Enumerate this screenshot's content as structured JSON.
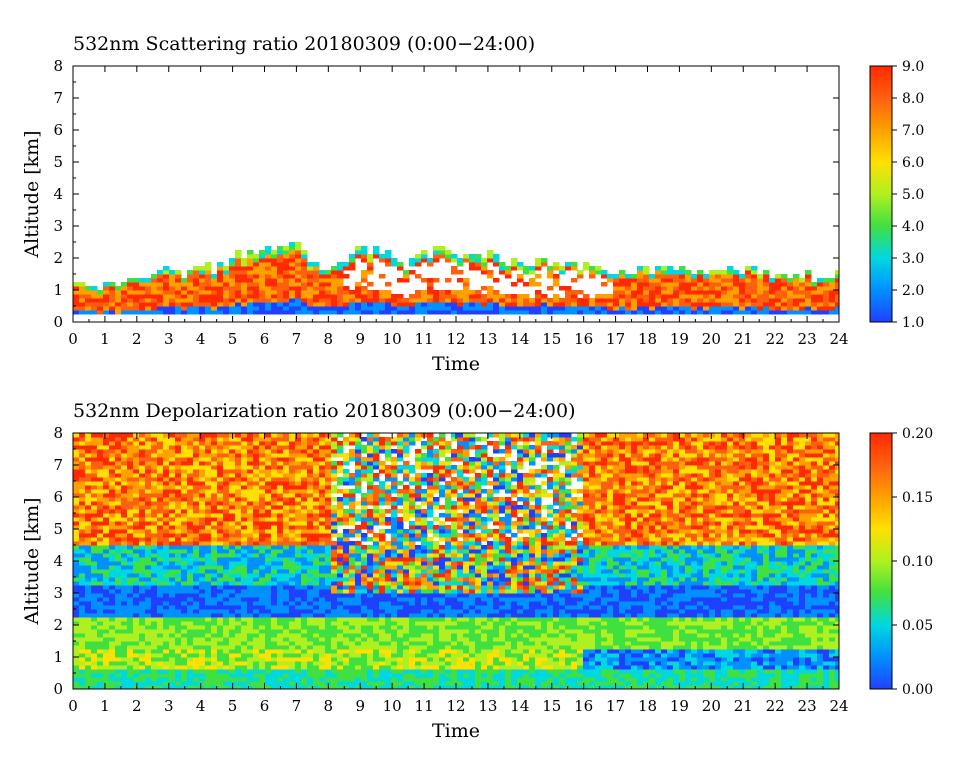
{
  "chart_data": [
    {
      "type": "heatmap",
      "title": "532nm Scattering ratio  20180309 (0:00−24:00)",
      "xlabel": "Time",
      "ylabel": "Altitude [km]",
      "xlim": [
        0,
        24
      ],
      "ylim": [
        0,
        8
      ],
      "x_ticks": [
        0,
        1,
        2,
        3,
        4,
        5,
        6,
        7,
        8,
        9,
        10,
        11,
        12,
        13,
        14,
        15,
        16,
        17,
        18,
        19,
        20,
        21,
        22,
        23,
        24
      ],
      "y_ticks": [
        0,
        1,
        2,
        3,
        4,
        5,
        6,
        7,
        8
      ],
      "colorbar": {
        "min": 1.0,
        "max": 9.0,
        "ticks": [
          "1.0",
          "2.0",
          "3.0",
          "4.0",
          "5.0",
          "6.0",
          "7.0",
          "8.0",
          "9.0"
        ]
      },
      "colors": [
        "#2040ff",
        "#0090ff",
        "#00d8e0",
        "#40e040",
        "#b0f020",
        "#ffe000",
        "#ffa000",
        "#ff6010",
        "#ff2a00"
      ],
      "cloud_top_km": [
        [
          0,
          1.2
        ],
        [
          0.5,
          1.0
        ],
        [
          1,
          1.1
        ],
        [
          1.5,
          1.3
        ],
        [
          2,
          1.5
        ],
        [
          2.5,
          1.4
        ],
        [
          3,
          1.7
        ],
        [
          3.5,
          1.5
        ],
        [
          4,
          1.8
        ],
        [
          4.5,
          1.7
        ],
        [
          5,
          2.0
        ],
        [
          5.5,
          2.1
        ],
        [
          6,
          2.2
        ],
        [
          6.5,
          2.4
        ],
        [
          7,
          2.6
        ],
        [
          7.5,
          1.9
        ],
        [
          8,
          1.6
        ],
        [
          8.5,
          1.8
        ],
        [
          9,
          2.3
        ],
        [
          9.5,
          2.2
        ],
        [
          10,
          2.1
        ],
        [
          10.5,
          1.7
        ],
        [
          11,
          2.2
        ],
        [
          11.5,
          2.2
        ],
        [
          12,
          2.1
        ],
        [
          12.5,
          2.0
        ],
        [
          13,
          2.1
        ],
        [
          13.5,
          2.0
        ],
        [
          14,
          1.9
        ],
        [
          14.5,
          1.9
        ],
        [
          15,
          1.8
        ],
        [
          15.5,
          1.8
        ],
        [
          16,
          1.7
        ],
        [
          16.5,
          1.7
        ],
        [
          17,
          1.6
        ],
        [
          17.5,
          1.6
        ],
        [
          18,
          1.6
        ],
        [
          18.5,
          1.6
        ],
        [
          19,
          1.6
        ],
        [
          19.5,
          1.6
        ],
        [
          20,
          1.6
        ],
        [
          20.5,
          1.6
        ],
        [
          21,
          1.6
        ],
        [
          21.5,
          1.6
        ],
        [
          22,
          1.5
        ],
        [
          22.5,
          1.5
        ],
        [
          23,
          1.5
        ],
        [
          23.5,
          1.4
        ],
        [
          24,
          1.5
        ]
      ]
    },
    {
      "type": "heatmap",
      "title": "532nm Depolarization ratio  20180309 (0:00−24:00)",
      "xlabel": "Time",
      "ylabel": "Altitude [km]",
      "xlim": [
        0,
        24
      ],
      "ylim": [
        0,
        8
      ],
      "x_ticks": [
        0,
        1,
        2,
        3,
        4,
        5,
        6,
        7,
        8,
        9,
        10,
        11,
        12,
        13,
        14,
        15,
        16,
        17,
        18,
        19,
        20,
        21,
        22,
        23,
        24
      ],
      "y_ticks": [
        0,
        1,
        2,
        3,
        4,
        5,
        6,
        7,
        8
      ],
      "colorbar": {
        "min": 0.0,
        "max": 0.2,
        "ticks": [
          "0.00",
          "0.05",
          "0.10",
          "0.15",
          "0.20"
        ]
      },
      "colors": [
        "#2040ff",
        "#0090ff",
        "#00d8e0",
        "#40e040",
        "#b0f020",
        "#ffe000",
        "#ffa000",
        "#ff6010",
        "#ff2a00"
      ]
    }
  ]
}
